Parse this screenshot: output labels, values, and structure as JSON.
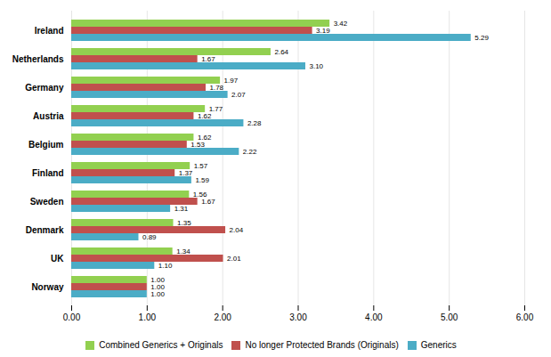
{
  "chart_data": {
    "type": "bar",
    "orientation": "horizontal",
    "categories": [
      "Norway",
      "UK",
      "Denmark",
      "Sweden",
      "Finland",
      "Belgium",
      "Austria",
      "Germany",
      "Netherlands",
      "Ireland"
    ],
    "series": [
      {
        "name": "Combined Generics + Originals",
        "color": "#92D050",
        "values": [
          1.0,
          1.34,
          1.35,
          1.56,
          1.57,
          1.62,
          1.77,
          1.97,
          2.64,
          3.42
        ],
        "value_labels": [
          "1.00",
          "1.34",
          "1.35",
          "1.56",
          "1.57",
          "1.62",
          "1.77",
          "1.97",
          "2.64",
          "3.42"
        ]
      },
      {
        "name": "No longer Protected Brands (Originals)",
        "color": "#C0504D",
        "values": [
          1.0,
          2.01,
          2.04,
          1.67,
          1.37,
          1.53,
          1.62,
          1.78,
          1.67,
          3.19
        ],
        "value_labels": [
          "1.00",
          "2.01",
          "2.04",
          "1.67",
          "1.37",
          "1.53",
          "1.62",
          "1.78",
          "1.67",
          "3.19"
        ]
      },
      {
        "name": "Generics",
        "color": "#4BACC6",
        "values": [
          1.0,
          1.1,
          0.89,
          1.31,
          1.59,
          2.22,
          2.28,
          2.07,
          3.1,
          5.29
        ],
        "value_labels": [
          "1.00",
          "1.10",
          "0.89",
          "1.31",
          "1.59",
          "2.22",
          "2.28",
          "2.07",
          "3.10",
          "5.29"
        ]
      }
    ],
    "xlim": [
      0,
      6.0
    ],
    "xticks": [
      {
        "value": 0,
        "label": "0.00"
      },
      {
        "value": 1,
        "label": "1.00"
      },
      {
        "value": 2,
        "label": "2.00"
      },
      {
        "value": 3,
        "label": "3.00"
      },
      {
        "value": 4,
        "label": "4.00"
      },
      {
        "value": 5,
        "label": "5.00"
      },
      {
        "value": 6,
        "label": "6.00"
      }
    ],
    "grid": true,
    "legend": "bottom",
    "data_labels": true
  }
}
